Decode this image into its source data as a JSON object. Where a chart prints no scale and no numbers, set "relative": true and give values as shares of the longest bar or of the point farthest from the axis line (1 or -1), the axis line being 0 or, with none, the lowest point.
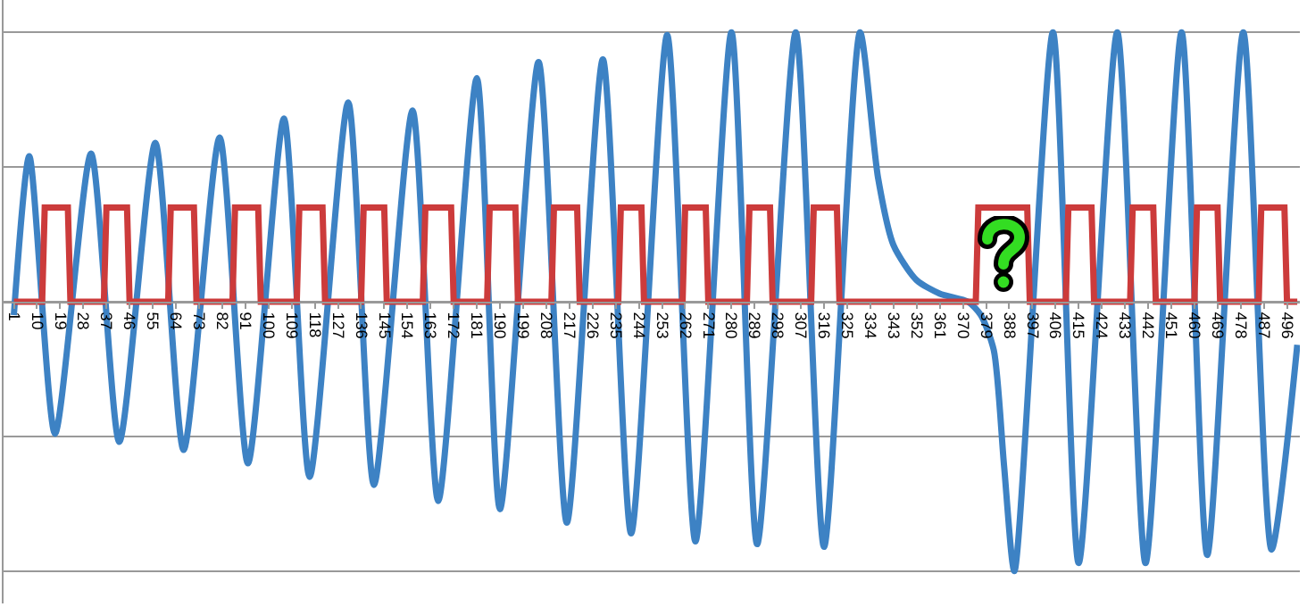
{
  "chart_data": {
    "type": "line",
    "relative": true,
    "grid": "y",
    "line_style": "solid",
    "marker": "none",
    "xlim": [
      -3,
      501
    ],
    "xticks": [
      1,
      10,
      19,
      28,
      37,
      46,
      55,
      64,
      73,
      82,
      91,
      100,
      109,
      118,
      127,
      136,
      145,
      154,
      163,
      172,
      181,
      190,
      199,
      208,
      217,
      226,
      235,
      244,
      253,
      262,
      271,
      280,
      289,
      298,
      307,
      316,
      325,
      334,
      343,
      352,
      361,
      370,
      379,
      388,
      397,
      406,
      415,
      424,
      433,
      442,
      451,
      460,
      469,
      478,
      487,
      496
    ],
    "series": [
      {
        "color": "#3d82c4",
        "x": [
          1,
          7,
          17,
          31,
          42,
          56,
          67,
          81,
          92,
          106,
          116,
          131,
          141,
          156,
          166,
          181,
          190,
          205,
          216,
          230,
          241,
          255,
          266,
          280,
          290,
          305,
          316,
          330,
          337,
          343,
          352,
          361,
          372,
          377,
          382,
          386,
          390,
          405,
          415,
          430,
          441,
          455,
          465,
          479,
          490,
          500
        ],
        "values": [
          -0.05,
          0.54,
          -0.49,
          0.55,
          -0.52,
          0.59,
          -0.55,
          0.61,
          -0.6,
          0.68,
          -0.65,
          0.74,
          -0.68,
          0.71,
          -0.74,
          0.83,
          -0.77,
          0.89,
          -0.82,
          0.9,
          -0.86,
          0.99,
          -0.89,
          1,
          -0.9,
          1,
          -0.91,
          1,
          0.46,
          0.21,
          0.08,
          0.03,
          0,
          -0.05,
          -0.18,
          -0.61,
          -1,
          1,
          -0.97,
          1,
          -0.97,
          1,
          -0.94,
          1,
          -0.92,
          -0.16
        ]
      },
      {
        "color": "#cc3b3b",
        "x": [
          1,
          12,
          13,
          22,
          23,
          36,
          37,
          45,
          46,
          61,
          62,
          71,
          72,
          86,
          87,
          96,
          97,
          111,
          112,
          121,
          122,
          136,
          137,
          145,
          146,
          160,
          161,
          171,
          172,
          185,
          186,
          196,
          197,
          210,
          211,
          220,
          221,
          236,
          237,
          245,
          246,
          261,
          262,
          270,
          271,
          286,
          287,
          295,
          296,
          311,
          312,
          321,
          322,
          375,
          376,
          395,
          396,
          410,
          411,
          420,
          421,
          435,
          436,
          444,
          445,
          460,
          461,
          469,
          470,
          485,
          486,
          495,
          496,
          500
        ],
        "values": [
          0,
          0,
          0.35,
          0.35,
          0,
          0,
          0.35,
          0.35,
          0,
          0,
          0.35,
          0.35,
          0,
          0,
          0.35,
          0.35,
          0,
          0,
          0.35,
          0.35,
          0,
          0,
          0.35,
          0.35,
          0,
          0,
          0.35,
          0.35,
          0,
          0,
          0.35,
          0.35,
          0,
          0,
          0.35,
          0.35,
          0,
          0,
          0.35,
          0.35,
          0,
          0,
          0.35,
          0.35,
          0,
          0,
          0.35,
          0.35,
          0,
          0,
          0.35,
          0.35,
          0,
          0,
          0.35,
          0.35,
          0,
          0,
          0.35,
          0.35,
          0,
          0,
          0.35,
          0.35,
          0,
          0,
          0.35,
          0.35,
          0,
          0,
          0.35,
          0.35,
          0,
          0
        ]
      }
    ]
  }
}
